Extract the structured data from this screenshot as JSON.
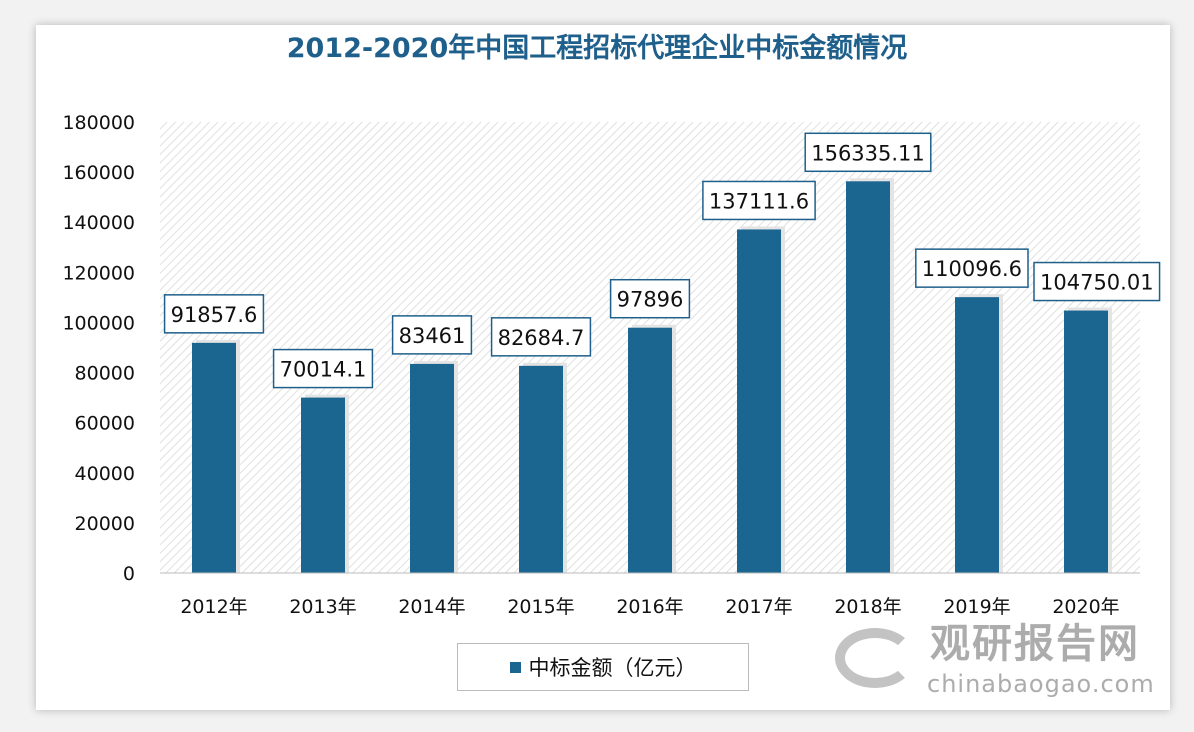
{
  "chart_data": {
    "type": "bar",
    "title": "2012-2020年中国工程招标代理企业中标金额情况",
    "categories": [
      "2012年",
      "2013年",
      "2014年",
      "2015年",
      "2016年",
      "2017年",
      "2018年",
      "2019年",
      "2020年"
    ],
    "series": [
      {
        "name": "中标金额（亿元）",
        "values": [
          91857.6,
          70014.1,
          83461,
          82684.7,
          97896,
          137111.6,
          156335.11,
          110096.6,
          104750.01
        ]
      }
    ],
    "data_labels": [
      "91857.6",
      "70014.1",
      "83461",
      "82684.7",
      "97896",
      "137111.6",
      "156335.11",
      "110096.6",
      "104750.01"
    ],
    "yticks": [
      0,
      20000,
      40000,
      60000,
      80000,
      100000,
      120000,
      140000,
      160000,
      180000
    ],
    "ylim": [
      0,
      180000
    ],
    "legend_position": "bottom",
    "bar_color": "#1b6690",
    "grid": false
  },
  "watermark": {
    "cn": "观研报告网",
    "en": "chinabaogao.com"
  }
}
